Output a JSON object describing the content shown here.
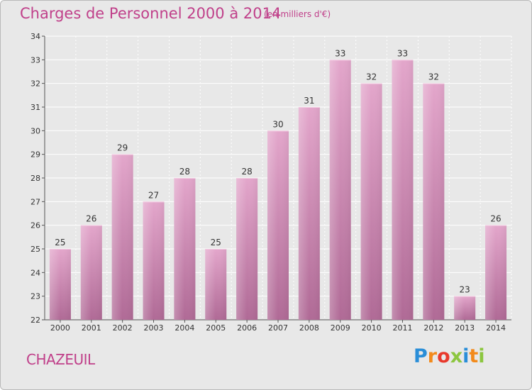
{
  "header": {
    "title": "Charges de Personnel 2000 à 2014",
    "subtitle": "(en milliers d'€)"
  },
  "footer": {
    "place": "CHAZEUIL",
    "logo": "Proxiti",
    "logo_colors": [
      "#2a8ed8",
      "#f28a1b",
      "#e8392c",
      "#8cc63f",
      "#2a8ed8",
      "#f28a1b",
      "#8cc63f"
    ]
  },
  "colors": {
    "accent": "#c0408a",
    "bar": "#d88cb8",
    "background": "#e8e8e8"
  },
  "chart_data": {
    "type": "bar",
    "title": "Charges de Personnel 2000 à 2014",
    "subtitle": "(en milliers d'€)",
    "categories": [
      "2000",
      "2001",
      "2002",
      "2003",
      "2004",
      "2005",
      "2006",
      "2007",
      "2008",
      "2009",
      "2010",
      "2011",
      "2012",
      "2013",
      "2014"
    ],
    "values": [
      25,
      26,
      29,
      27,
      28,
      25,
      28,
      30,
      31,
      33,
      32,
      33,
      32,
      23,
      26
    ],
    "ylim": [
      22,
      34
    ],
    "yticks": [
      22,
      23,
      24,
      25,
      26,
      27,
      28,
      29,
      30,
      31,
      32,
      33,
      34
    ],
    "xlabel": "",
    "ylabel": "",
    "grid": true,
    "data_labels": true
  }
}
